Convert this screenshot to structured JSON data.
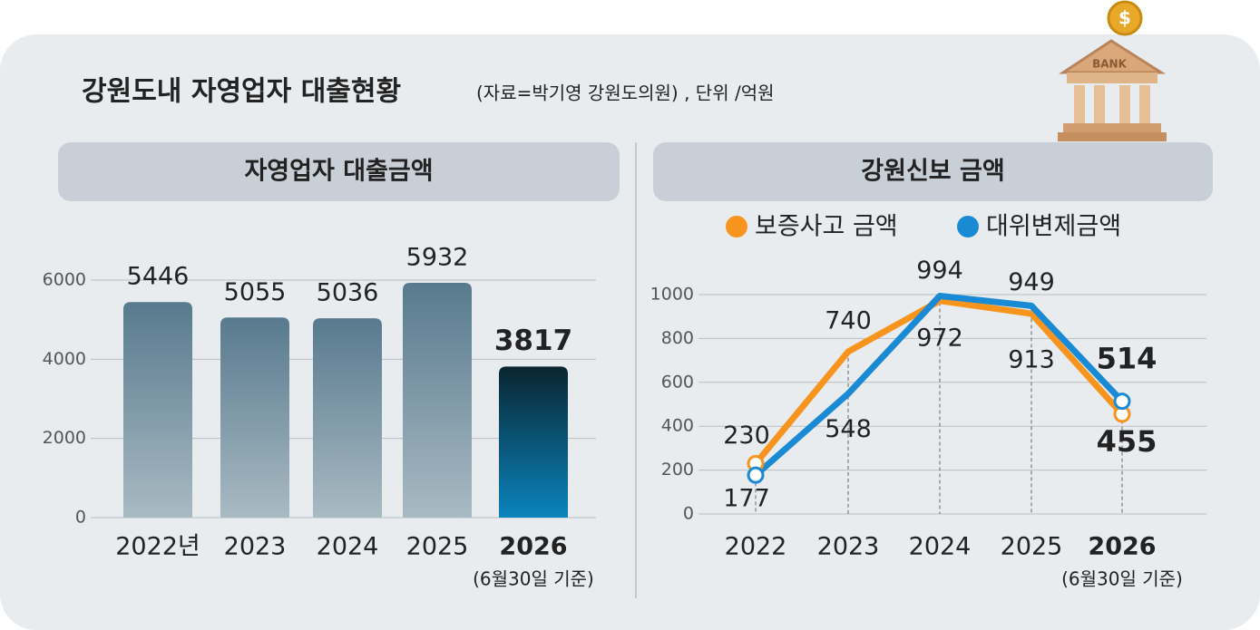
{
  "header": {
    "title": "강원도내 자영업자 대출현황",
    "subtitle": "(자료=박기영 강원도의원) , 단위 /억원"
  },
  "chart_data": [
    {
      "type": "bar",
      "title": "자영업자 대출금액",
      "categories": [
        "2022년",
        "2023",
        "2024",
        "2025",
        "2026"
      ],
      "values": [
        5446,
        5055,
        5036,
        5932,
        3817
      ],
      "note": "(6월30일 기준)",
      "ylim": [
        0,
        6000
      ],
      "yticks": [
        0,
        2000,
        4000,
        6000
      ],
      "grid": true
    },
    {
      "type": "line",
      "title": "강원신보 금액",
      "categories": [
        "2022",
        "2023",
        "2024",
        "2025",
        "2026"
      ],
      "series": [
        {
          "name": "보증사고 금액",
          "color": "#f7941d",
          "values": [
            230,
            740,
            972,
            913,
            455
          ]
        },
        {
          "name": "대위변제금액",
          "color": "#1a8ad4",
          "values": [
            177,
            548,
            994,
            949,
            514
          ]
        }
      ],
      "note": "(6월30일 기준)",
      "ylim": [
        0,
        1000
      ],
      "yticks": [
        0,
        200,
        400,
        600,
        800,
        1000
      ],
      "grid": true
    }
  ]
}
